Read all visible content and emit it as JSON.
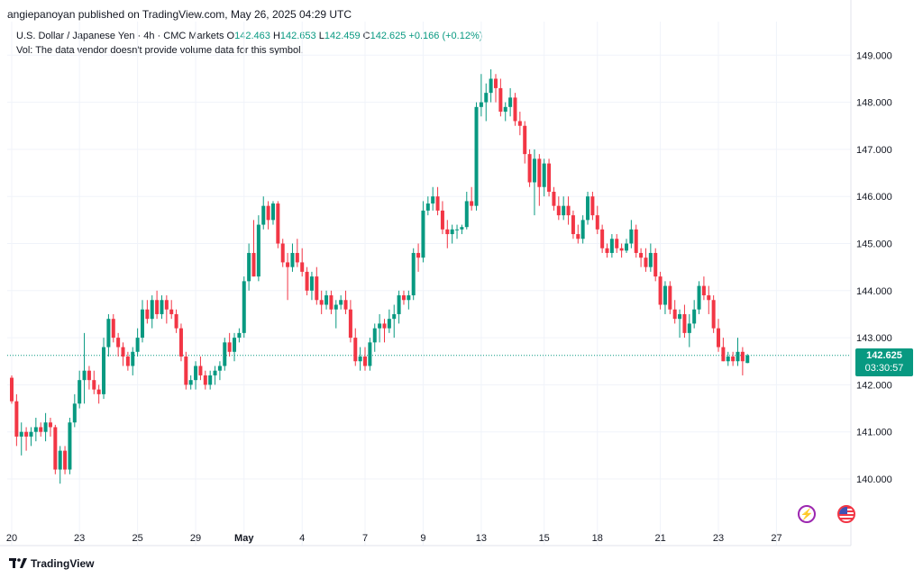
{
  "header": {
    "published": "angiepanoyan published on TradingView.com, May 26, 2025 04:29 UTC"
  },
  "legend": {
    "symbol": "U.S. Dollar / Japanese Yen · 4h · CMC Markets",
    "open_label": "O",
    "open": "142.463",
    "high_label": "H",
    "high": "142.653",
    "low_label": "L",
    "low": "142.459",
    "close_label": "C",
    "close": "142.625",
    "change": "+0.166 (+0.12%)",
    "vol_note": "Vol: The data vendor doesn't provide volume data for this symbol."
  },
  "price_tag": {
    "price": "142.625",
    "countdown": "03:30:57"
  },
  "footer": {
    "brand": "TradingView"
  },
  "icons": {
    "badge1": "lightning-icon",
    "badge2": "us-flag-icon"
  },
  "colors": {
    "up": "#089981",
    "down": "#f23645",
    "grid": "#f0f3fa",
    "text": "#131722"
  },
  "chart_data": {
    "type": "candlestick",
    "title": "U.S. Dollar / Japanese Yen · 4h · CMC Markets",
    "ylim": [
      139.2,
      149.6
    ],
    "y_ticks": [
      "149.000",
      "148.000",
      "147.000",
      "146.000",
      "145.000",
      "144.000",
      "143.000",
      "142.000",
      "141.000",
      "140.000"
    ],
    "y_tick_values": [
      149,
      148,
      147,
      146,
      145,
      144,
      143,
      142,
      141,
      140
    ],
    "x_ticks": [
      "20",
      "23",
      "25",
      "29",
      "May",
      "4",
      "7",
      "9",
      "13",
      "15",
      "18",
      "21",
      "23",
      "27"
    ],
    "x_tick_index": [
      0,
      14,
      26,
      38,
      48,
      60,
      73,
      85,
      97,
      110,
      121,
      134,
      146,
      158
    ],
    "last_price": 142.625,
    "candles": [
      [
        142.15,
        142.2,
        141.6,
        141.65
      ],
      [
        141.65,
        141.8,
        140.7,
        140.9
      ],
      [
        140.9,
        141.2,
        140.5,
        141.0
      ],
      [
        141.0,
        141.1,
        140.6,
        140.9
      ],
      [
        140.9,
        141.1,
        140.7,
        141.0
      ],
      [
        141.0,
        141.3,
        140.8,
        141.1
      ],
      [
        141.1,
        141.2,
        140.9,
        141.0
      ],
      [
        141.0,
        141.4,
        140.8,
        141.2
      ],
      [
        141.2,
        141.3,
        140.9,
        141.1
      ],
      [
        141.1,
        141.15,
        140.1,
        140.2
      ],
      [
        140.2,
        140.7,
        139.9,
        140.6
      ],
      [
        140.6,
        140.7,
        140.1,
        140.2
      ],
      [
        140.2,
        141.3,
        140.1,
        141.2
      ],
      [
        141.2,
        141.8,
        141.1,
        141.6
      ],
      [
        141.6,
        142.3,
        141.5,
        142.1
      ],
      [
        142.1,
        143.1,
        141.6,
        142.3
      ],
      [
        142.3,
        142.4,
        141.9,
        142.1
      ],
      [
        142.1,
        142.3,
        141.8,
        141.9
      ],
      [
        141.9,
        142.0,
        141.6,
        141.8
      ],
      [
        141.8,
        143.0,
        141.7,
        142.8
      ],
      [
        142.8,
        143.5,
        142.6,
        143.4
      ],
      [
        143.4,
        143.5,
        142.9,
        143.0
      ],
      [
        143.0,
        143.1,
        142.6,
        142.8
      ],
      [
        142.8,
        142.9,
        142.4,
        142.6
      ],
      [
        142.6,
        142.7,
        142.3,
        142.4
      ],
      [
        142.4,
        142.8,
        142.2,
        142.7
      ],
      [
        142.7,
        143.2,
        142.6,
        143.0
      ],
      [
        143.0,
        143.8,
        142.9,
        143.6
      ],
      [
        143.6,
        143.8,
        143.3,
        143.4
      ],
      [
        143.4,
        143.9,
        143.2,
        143.8
      ],
      [
        143.8,
        144.0,
        143.4,
        143.5
      ],
      [
        143.5,
        143.9,
        143.4,
        143.8
      ],
      [
        143.8,
        143.9,
        143.3,
        143.6
      ],
      [
        143.6,
        143.8,
        143.4,
        143.5
      ],
      [
        143.5,
        143.6,
        143.1,
        143.2
      ],
      [
        143.2,
        143.3,
        142.5,
        142.6
      ],
      [
        142.6,
        142.7,
        141.9,
        142.0
      ],
      [
        142.0,
        142.2,
        141.9,
        142.1
      ],
      [
        142.1,
        142.5,
        141.9,
        142.4
      ],
      [
        142.4,
        142.6,
        142.1,
        142.2
      ],
      [
        142.2,
        142.3,
        141.9,
        142.0
      ],
      [
        142.0,
        142.3,
        141.9,
        142.2
      ],
      [
        142.2,
        142.4,
        142.0,
        142.3
      ],
      [
        142.3,
        142.5,
        142.1,
        142.4
      ],
      [
        142.4,
        143.0,
        142.3,
        142.9
      ],
      [
        142.9,
        143.1,
        142.6,
        142.7
      ],
      [
        142.7,
        143.1,
        142.5,
        143.0
      ],
      [
        143.0,
        143.2,
        142.9,
        143.1
      ],
      [
        143.1,
        144.3,
        143.0,
        144.2
      ],
      [
        144.2,
        145.0,
        144.0,
        144.8
      ],
      [
        144.8,
        145.5,
        144.3,
        144.3
      ],
      [
        144.3,
        145.6,
        144.2,
        145.4
      ],
      [
        145.4,
        146.0,
        145.3,
        145.8
      ],
      [
        145.8,
        145.9,
        145.3,
        145.5
      ],
      [
        145.5,
        145.9,
        145.4,
        145.85
      ],
      [
        145.85,
        145.9,
        144.9,
        145.0
      ],
      [
        145.0,
        145.1,
        144.5,
        144.6
      ],
      [
        144.6,
        144.8,
        143.8,
        144.5
      ],
      [
        144.5,
        145.0,
        144.4,
        144.8
      ],
      [
        144.8,
        145.1,
        144.5,
        144.6
      ],
      [
        144.6,
        144.9,
        144.3,
        144.4
      ],
      [
        144.4,
        144.5,
        143.9,
        144.0
      ],
      [
        144.0,
        144.4,
        143.8,
        144.3
      ],
      [
        144.3,
        144.5,
        143.7,
        143.8
      ],
      [
        143.8,
        144.0,
        143.5,
        143.7
      ],
      [
        143.7,
        144.0,
        143.6,
        143.9
      ],
      [
        143.9,
        144.0,
        143.5,
        143.6
      ],
      [
        143.6,
        143.8,
        143.2,
        143.7
      ],
      [
        143.7,
        143.9,
        143.6,
        143.8
      ],
      [
        143.8,
        144.0,
        143.5,
        143.6
      ],
      [
        143.6,
        143.8,
        142.9,
        143.0
      ],
      [
        143.0,
        143.2,
        142.4,
        142.5
      ],
      [
        142.5,
        142.8,
        142.3,
        142.6
      ],
      [
        142.6,
        142.8,
        142.3,
        142.4
      ],
      [
        142.4,
        143.0,
        142.3,
        142.9
      ],
      [
        142.9,
        143.3,
        142.7,
        143.2
      ],
      [
        143.2,
        143.5,
        142.9,
        143.3
      ],
      [
        143.3,
        143.4,
        142.9,
        143.2
      ],
      [
        143.2,
        143.6,
        143.1,
        143.4
      ],
      [
        143.4,
        143.7,
        143.0,
        143.5
      ],
      [
        143.5,
        144.0,
        143.3,
        143.9
      ],
      [
        143.9,
        144.0,
        143.7,
        143.8
      ],
      [
        143.8,
        144.0,
        143.6,
        143.9
      ],
      [
        143.9,
        144.9,
        143.8,
        144.8
      ],
      [
        144.8,
        145.0,
        144.4,
        144.7
      ],
      [
        144.7,
        145.9,
        144.6,
        145.7
      ],
      [
        145.7,
        146.0,
        145.6,
        145.85
      ],
      [
        145.85,
        146.2,
        145.7,
        146.0
      ],
      [
        146.0,
        146.2,
        145.6,
        145.7
      ],
      [
        145.7,
        145.9,
        145.2,
        145.3
      ],
      [
        145.3,
        145.5,
        144.9,
        145.2
      ],
      [
        145.2,
        145.4,
        145.0,
        145.3
      ],
      [
        145.3,
        145.4,
        145.1,
        145.3
      ],
      [
        145.3,
        145.4,
        145.2,
        145.35
      ],
      [
        145.35,
        146.1,
        145.3,
        145.9
      ],
      [
        145.9,
        146.2,
        145.7,
        145.8
      ],
      [
        145.8,
        148.0,
        145.7,
        147.9
      ],
      [
        147.9,
        148.6,
        147.7,
        148.0
      ],
      [
        148.0,
        148.4,
        147.6,
        148.2
      ],
      [
        148.2,
        148.7,
        148.0,
        148.5
      ],
      [
        148.5,
        148.6,
        148.0,
        148.3
      ],
      [
        148.3,
        148.5,
        147.7,
        147.8
      ],
      [
        147.8,
        148.0,
        147.6,
        147.9
      ],
      [
        147.9,
        148.3,
        147.7,
        148.1
      ],
      [
        148.1,
        148.2,
        147.5,
        147.6
      ],
      [
        147.6,
        147.8,
        147.3,
        147.5
      ],
      [
        147.5,
        147.6,
        146.7,
        146.9
      ],
      [
        146.9,
        147.0,
        146.2,
        146.3
      ],
      [
        146.3,
        147.0,
        145.6,
        146.8
      ],
      [
        146.8,
        146.9,
        145.8,
        146.2
      ],
      [
        146.2,
        146.8,
        146.0,
        146.7
      ],
      [
        146.7,
        146.8,
        146.0,
        146.1
      ],
      [
        146.1,
        146.2,
        145.7,
        145.8
      ],
      [
        145.8,
        146.0,
        145.5,
        145.6
      ],
      [
        145.6,
        146.0,
        145.5,
        145.8
      ],
      [
        145.8,
        146.0,
        145.4,
        145.6
      ],
      [
        145.6,
        145.7,
        145.1,
        145.2
      ],
      [
        145.2,
        145.4,
        145.0,
        145.1
      ],
      [
        145.1,
        145.6,
        145.0,
        145.5
      ],
      [
        145.5,
        146.1,
        145.4,
        146.0
      ],
      [
        146.0,
        146.1,
        145.5,
        145.6
      ],
      [
        145.6,
        145.8,
        145.2,
        145.3
      ],
      [
        145.3,
        145.4,
        144.8,
        144.9
      ],
      [
        144.9,
        145.0,
        144.7,
        144.8
      ],
      [
        144.8,
        145.2,
        144.7,
        145.1
      ],
      [
        145.1,
        145.2,
        144.8,
        144.9
      ],
      [
        144.9,
        145.0,
        144.7,
        144.85
      ],
      [
        144.85,
        145.1,
        144.8,
        145.0
      ],
      [
        145.0,
        145.5,
        144.9,
        145.3
      ],
      [
        145.3,
        145.4,
        144.7,
        144.8
      ],
      [
        144.8,
        144.9,
        144.5,
        144.7
      ],
      [
        144.7,
        144.9,
        144.4,
        144.5
      ],
      [
        144.5,
        145.0,
        144.4,
        144.8
      ],
      [
        144.8,
        144.9,
        144.2,
        144.3
      ],
      [
        144.3,
        144.4,
        143.6,
        143.7
      ],
      [
        143.7,
        144.2,
        143.5,
        144.1
      ],
      [
        144.1,
        144.2,
        143.5,
        143.6
      ],
      [
        143.6,
        143.8,
        143.3,
        143.4
      ],
      [
        143.4,
        143.6,
        143.0,
        143.5
      ],
      [
        143.5,
        143.7,
        143.0,
        143.1
      ],
      [
        143.1,
        143.5,
        142.8,
        143.3
      ],
      [
        143.3,
        143.8,
        143.2,
        143.6
      ],
      [
        143.6,
        144.2,
        143.5,
        144.1
      ],
      [
        144.1,
        144.3,
        143.8,
        143.9
      ],
      [
        143.9,
        144.1,
        143.5,
        143.8
      ],
      [
        143.8,
        143.9,
        143.1,
        143.2
      ],
      [
        143.2,
        143.4,
        142.7,
        142.8
      ],
      [
        142.8,
        143.0,
        142.5,
        142.5
      ],
      [
        142.5,
        142.7,
        142.4,
        142.6
      ],
      [
        142.6,
        142.7,
        142.4,
        142.5
      ],
      [
        142.5,
        143.0,
        142.4,
        142.7
      ],
      [
        142.7,
        142.8,
        142.2,
        142.5
      ],
      [
        142.463,
        142.653,
        142.459,
        142.625
      ]
    ]
  }
}
